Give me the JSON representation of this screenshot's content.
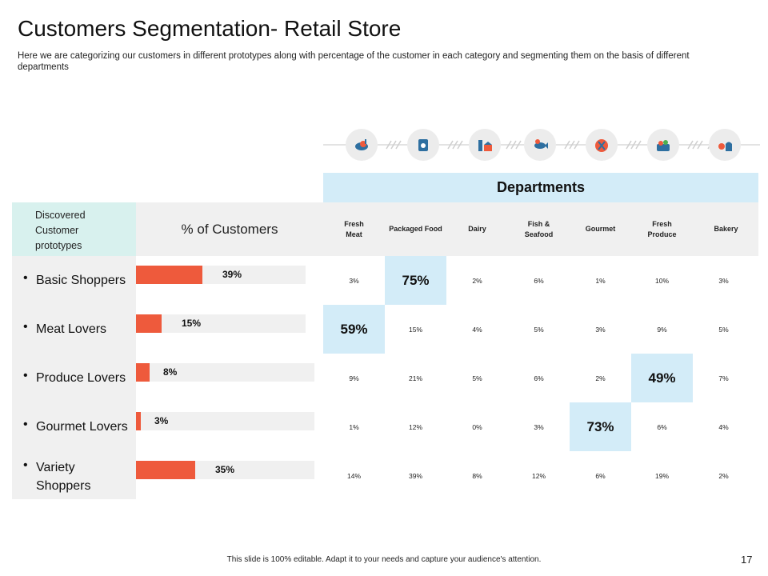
{
  "slide": {
    "title": "Customers Segmentation- Retail Store",
    "subtitle": "Here we are categorizing our customers in different prototypes along with percentage of the customer in each category and segmenting them on the basis of different departments",
    "footer_note": "This slide is 100% editable. Adapt it to your needs and capture your audience's attention.",
    "page_number": "17"
  },
  "colors": {
    "bar": "#ee5a3c",
    "highlight": "#d3ecf8",
    "header_teal": "#d8f1ee",
    "panel": "#f0f0f0"
  },
  "icons": [
    "meat-icon",
    "packaged-food-icon",
    "dairy-icon",
    "fish-seafood-icon",
    "gourmet-icon",
    "fresh-produce-icon",
    "bakery-icon"
  ],
  "table": {
    "departments_label": "Departments",
    "prototypes_header": "Discovered Customer prototypes",
    "percent_header": "% of Customers",
    "departments": [
      {
        "line1": "Fresh",
        "line2": "Meat"
      },
      {
        "line1": "Packaged Food",
        "line2": ""
      },
      {
        "line1": "Dairy",
        "line2": ""
      },
      {
        "line1": "Fish &",
        "line2": "Seafood"
      },
      {
        "line1": "Gourmet",
        "line2": ""
      },
      {
        "line1": "Fresh",
        "line2": "Produce"
      },
      {
        "line1": "Bakery",
        "line2": ""
      }
    ],
    "rows": [
      {
        "prototype": "Basic Shoppers",
        "percent": 39,
        "percent_label": "39%",
        "values": [
          "3%",
          "75%",
          "2%",
          "6%",
          "1%",
          "10%",
          "3%"
        ],
        "highlight_index": 1
      },
      {
        "prototype": "Meat Lovers",
        "percent": 15,
        "percent_label": "15%",
        "values": [
          "59%",
          "15%",
          "4%",
          "5%",
          "3%",
          "9%",
          "5%"
        ],
        "highlight_index": 0
      },
      {
        "prototype": "Produce Lovers",
        "percent": 8,
        "percent_label": "8%",
        "values": [
          "9%",
          "21%",
          "5%",
          "6%",
          "2%",
          "49%",
          "7%"
        ],
        "highlight_index": 5
      },
      {
        "prototype": "Gourmet Lovers",
        "percent": 3,
        "percent_label": "3%",
        "values": [
          "1%",
          "12%",
          "0%",
          "3%",
          "73%",
          "6%",
          "4%"
        ],
        "highlight_index": 4
      },
      {
        "prototype": "Variety Shoppers",
        "percent": 35,
        "percent_label": "35%",
        "values": [
          "14%",
          "39%",
          "8%",
          "12%",
          "6%",
          "19%",
          "2%"
        ],
        "highlight_index": -1
      }
    ]
  }
}
